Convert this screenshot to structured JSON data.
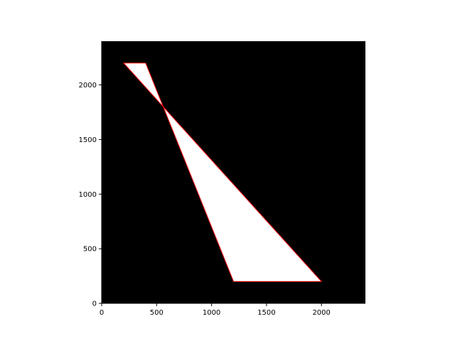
{
  "chart_data": {
    "type": "polygon-fill",
    "title": "",
    "xlabel": "",
    "ylabel": "",
    "xlim": [
      0,
      2400
    ],
    "ylim": [
      0,
      2400
    ],
    "x_ticks": [
      0,
      500,
      1000,
      1500,
      2000
    ],
    "y_ticks": [
      0,
      500,
      1000,
      1500,
      2000
    ],
    "x_tick_labels": [
      "0",
      "500",
      "1000",
      "1500",
      "2000"
    ],
    "y_tick_labels": [
      "0",
      "500",
      "1000",
      "1500",
      "2000"
    ],
    "grid": false,
    "fill_rule": "evenodd",
    "background_color": "#000000",
    "fill_color": "#ffffff",
    "edge_color": "#ff0000",
    "polygon": [
      [
        200,
        2200
      ],
      [
        2000,
        200
      ],
      [
        1200,
        200
      ],
      [
        400,
        2200
      ]
    ],
    "path_vertices": [
      [
        200,
        2200
      ],
      [
        2000,
        200
      ],
      [
        1200,
        200
      ],
      [
        400,
        2200
      ]
    ]
  }
}
